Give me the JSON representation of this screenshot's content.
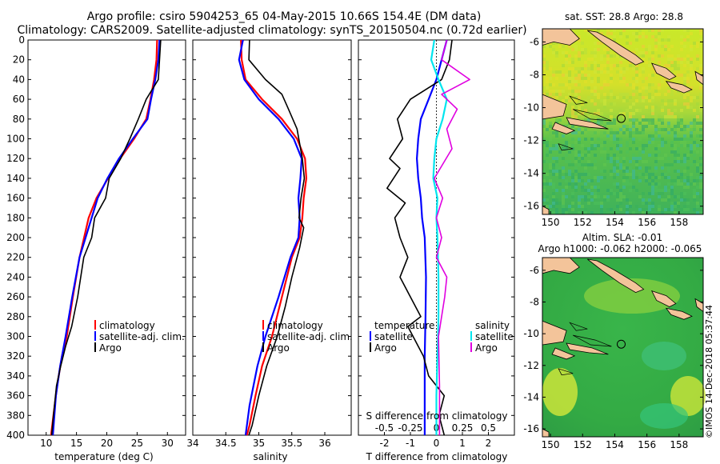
{
  "title_line1": "Argo profile: csiro 5904253_65 04-May-2015 10.66S 154.4E (DM data)",
  "title_line2": "Climatology: CARS2009. Satellite-adjusted climatology: synTS_20150504.nc (0.72d earlier)",
  "credit": "©IMOS 14-Dec-2018 05:37:44",
  "colors": {
    "climatology": "#ff0000",
    "satellite_adj": "#0000ff",
    "argo": "#000000",
    "sat_sal": "#00e5ee",
    "argo_sal": "#e000e0"
  },
  "depth_ticks": [
    "0",
    "20",
    "40",
    "60",
    "80",
    "100",
    "120",
    "140",
    "160",
    "180",
    "200",
    "220",
    "240",
    "260",
    "280",
    "300",
    "320",
    "340",
    "360",
    "380",
    "400"
  ],
  "chart_data": [
    {
      "type": "line",
      "name": "temperature",
      "xlabel": "temperature (deg C)",
      "ylabel": "depth",
      "xlim": [
        7,
        33
      ],
      "ylim": [
        400,
        0
      ],
      "xticks": [
        "10",
        "15",
        "20",
        "25",
        "30"
      ],
      "legend": [
        "climatology",
        "satellite-adj. clim.",
        "Argo"
      ],
      "series": [
        {
          "name": "climatology",
          "color": "#ff0000",
          "x": [
            28.3,
            28.2,
            27.8,
            27.2,
            26.5,
            24.5,
            22.2,
            20.2,
            18.3,
            17.0,
            15.5,
            14.4,
            13.4,
            12.6,
            11.8,
            11.2,
            10.8
          ],
          "y": [
            0,
            20,
            40,
            60,
            80,
            100,
            120,
            140,
            160,
            180,
            220,
            260,
            300,
            320,
            350,
            380,
            400
          ]
        },
        {
          "name": "satellite-adj. clim.",
          "color": "#0000ff",
          "x": [
            28.7,
            28.5,
            28.0,
            27.3,
            26.7,
            24.3,
            22.0,
            20.1,
            18.5,
            16.5,
            15.5,
            14.3,
            13.2,
            12.3,
            11.6,
            11.1
          ],
          "y": [
            0,
            20,
            40,
            60,
            80,
            100,
            120,
            140,
            160,
            200,
            220,
            260,
            300,
            330,
            360,
            400
          ]
        },
        {
          "name": "Argo",
          "color": "#000000",
          "x": [
            28.9,
            28.7,
            28.5,
            27.5,
            26.5,
            25.2,
            23.8,
            22.3,
            20.4,
            19.8,
            18.0,
            17.5,
            16.2,
            15.2,
            14.2,
            13.2,
            12.4,
            11.7,
            11.2,
            10.9
          ],
          "y": [
            0,
            20,
            40,
            50,
            60,
            80,
            100,
            120,
            140,
            160,
            180,
            200,
            220,
            260,
            290,
            310,
            330,
            350,
            380,
            400
          ]
        }
      ]
    },
    {
      "type": "line",
      "name": "salinity",
      "xlabel": "salinity",
      "ylabel": "depth",
      "xlim": [
        34.0,
        36.4
      ],
      "ylim": [
        400,
        0
      ],
      "xticks": [
        "34",
        "34.5",
        "35",
        "35.5",
        "36"
      ],
      "legend": [
        "climatology",
        "satellite-adj. clim.",
        "Argo"
      ],
      "series": [
        {
          "name": "climatology",
          "color": "#ff0000",
          "x": [
            34.73,
            34.74,
            34.8,
            35.05,
            35.35,
            35.58,
            35.7,
            35.72,
            35.68,
            35.66,
            35.62,
            35.5,
            35.35,
            35.2,
            35.05,
            34.95,
            34.86,
            34.82
          ],
          "y": [
            0,
            20,
            40,
            60,
            80,
            100,
            120,
            140,
            160,
            180,
            200,
            220,
            260,
            300,
            330,
            360,
            390,
            400
          ]
        },
        {
          "name": "satellite-adj. clim.",
          "color": "#0000ff",
          "x": [
            34.76,
            34.7,
            34.78,
            35.0,
            35.3,
            35.53,
            35.65,
            35.63,
            35.6,
            35.62,
            35.6,
            35.48,
            35.3,
            35.1,
            34.98,
            34.86,
            34.8
          ],
          "y": [
            0,
            20,
            40,
            60,
            80,
            100,
            120,
            140,
            160,
            180,
            200,
            220,
            260,
            300,
            330,
            370,
            400
          ]
        },
        {
          "name": "Argo",
          "color": "#000000",
          "x": [
            34.86,
            34.85,
            35.1,
            35.35,
            35.45,
            35.58,
            35.66,
            35.69,
            35.64,
            35.61,
            35.68,
            35.62,
            35.5,
            35.4,
            35.28,
            35.12,
            35.0,
            34.9,
            34.85
          ],
          "y": [
            0,
            20,
            40,
            55,
            70,
            90,
            120,
            140,
            160,
            180,
            190,
            210,
            240,
            270,
            300,
            330,
            360,
            390,
            400
          ]
        }
      ]
    },
    {
      "type": "line",
      "name": "difference",
      "xlabel": "T difference from climatology",
      "ylabel": "depth",
      "xlim": [
        -3,
        3
      ],
      "ylim": [
        400,
        0
      ],
      "xticks": [
        "-2",
        "-1",
        "0",
        "1",
        "2"
      ],
      "s_xlabel": "S difference from climatology",
      "s_xlim": [
        -0.75,
        0.75
      ],
      "s_xticks": [
        "-0.5",
        "-0.25",
        "0",
        "0.25",
        "0.5"
      ],
      "legend_temperature_title": "temperature",
      "legend_salinity_title": "salinity",
      "legend": [
        "satellite",
        "Argo",
        "satellite",
        "Argo"
      ],
      "series": [
        {
          "name": "T satellite",
          "color": "#0000ff",
          "x": [
            0.4,
            0.2,
            0.0,
            -0.3,
            -0.6,
            -0.7,
            -0.75,
            -0.7,
            -0.6,
            -0.55,
            -0.45,
            -0.4,
            -0.42,
            -0.45,
            -0.45,
            -0.45
          ],
          "y": [
            0,
            20,
            40,
            60,
            80,
            100,
            120,
            140,
            160,
            180,
            200,
            240,
            280,
            320,
            360,
            400
          ]
        },
        {
          "name": "T Argo",
          "color": "#000000",
          "x": [
            0.6,
            0.5,
            0.2,
            -1.0,
            -1.5,
            -1.3,
            -1.8,
            -1.4,
            -1.9,
            -1.2,
            -1.6,
            -1.4,
            -1.1,
            -1.4,
            -1.0,
            -0.6,
            -1.1,
            -0.9,
            -0.5,
            -0.3,
            0.3,
            0.1,
            0.3
          ],
          "y": [
            0,
            20,
            40,
            60,
            80,
            100,
            120,
            130,
            150,
            165,
            180,
            200,
            220,
            240,
            260,
            280,
            290,
            300,
            320,
            340,
            360,
            380,
            400
          ]
        },
        {
          "name": "S satellite",
          "color": "#00e5ee",
          "x": [
            -0.02,
            -0.05,
            0.02,
            0.1,
            0.06,
            0.0,
            -0.02,
            -0.03,
            0.01,
            0.0,
            0.01,
            0.02,
            0.02,
            0.01,
            0.0,
            0.0
          ],
          "y": [
            0,
            20,
            40,
            60,
            80,
            100,
            120,
            140,
            160,
            180,
            200,
            240,
            280,
            320,
            360,
            400
          ]
        },
        {
          "name": "S Argo",
          "color": "#e000e0",
          "x": [
            0.1,
            0.05,
            0.32,
            0.05,
            0.2,
            0.1,
            0.15,
            -0.02,
            0.06,
            0.0,
            0.05,
            0.0,
            0.1,
            0.08,
            0.02,
            0.03,
            0.03
          ],
          "y": [
            0,
            20,
            40,
            55,
            70,
            90,
            110,
            140,
            160,
            180,
            200,
            220,
            240,
            260,
            300,
            350,
            400
          ]
        }
      ]
    },
    {
      "type": "heatmap",
      "name": "sst_map",
      "title": "sat. SST: 28.8 Argo: 28.8",
      "xlim": [
        149.5,
        159.5
      ],
      "ylim": [
        -16.5,
        -5.2
      ],
      "xticks": [
        "150",
        "152",
        "154",
        "156",
        "158"
      ],
      "yticks": [
        "-6",
        "-8",
        "-10",
        "-12",
        "-14",
        "-16"
      ],
      "marker": {
        "lon": 154.4,
        "lat": -10.66
      }
    },
    {
      "type": "heatmap",
      "name": "sla_map",
      "title_line1": "Altim. SLA: -0.01",
      "title_line2": "Argo h1000: -0.062 h2000: -0.065",
      "xlim": [
        149.5,
        159.5
      ],
      "ylim": [
        -16.5,
        -5.2
      ],
      "xticks": [
        "150",
        "152",
        "154",
        "156",
        "158"
      ],
      "yticks": [
        "-6",
        "-8",
        "-10",
        "-12",
        "-14",
        "-16"
      ],
      "marker": {
        "lon": 154.4,
        "lat": -10.66
      }
    }
  ]
}
